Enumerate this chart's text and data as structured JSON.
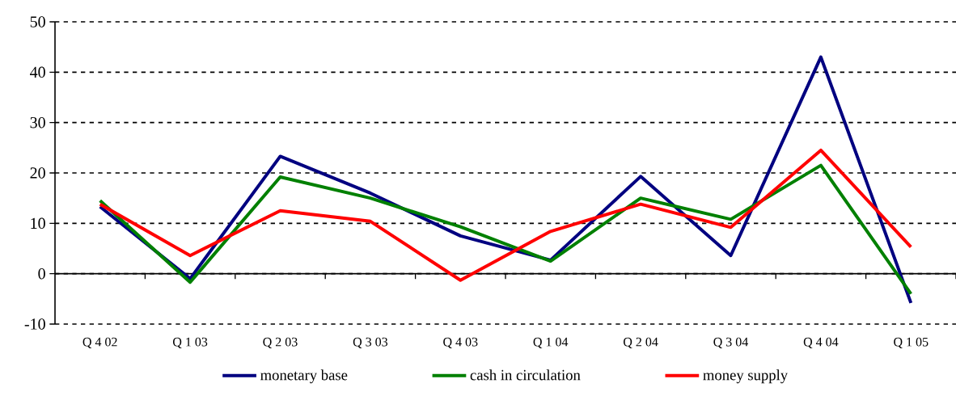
{
  "chart_data": {
    "type": "line",
    "categories": [
      "Q 4 02",
      "Q 1 03",
      "Q 2 03",
      "Q 3 03",
      "Q 4 03",
      "Q 1 04",
      "Q 2 04",
      "Q 3 04",
      "Q 4 04",
      "Q 1 05"
    ],
    "series": [
      {
        "name": "monetary base",
        "color": "#000080",
        "values": [
          13.3,
          -1.0,
          23.3,
          16.0,
          7.5,
          2.7,
          19.3,
          3.6,
          43.0,
          -5.8
        ]
      },
      {
        "name": "cash in circulation",
        "color": "#008000",
        "values": [
          14.5,
          -1.7,
          19.2,
          15.0,
          9.3,
          2.5,
          15.0,
          10.8,
          21.5,
          -4.0
        ]
      },
      {
        "name": "money supply",
        "color": "#ff0000",
        "values": [
          13.8,
          3.6,
          12.5,
          10.4,
          -1.3,
          8.4,
          13.8,
          9.2,
          24.5,
          5.3
        ]
      }
    ],
    "ylim": [
      -10,
      50
    ],
    "yticks": [
      -10,
      0,
      10,
      20,
      30,
      40,
      50
    ],
    "grid": "y",
    "legend": "bottom",
    "marker": "none",
    "line_style": "solid"
  }
}
